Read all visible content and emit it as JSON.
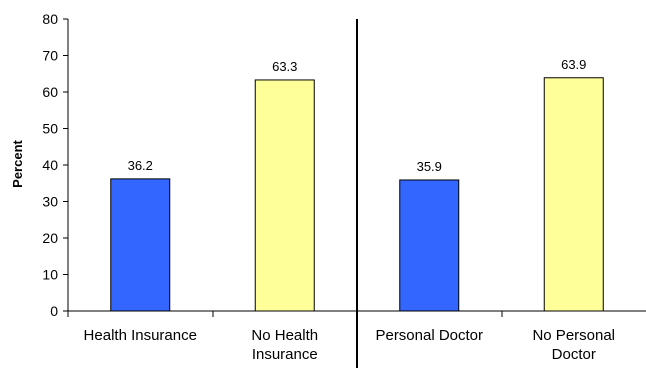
{
  "chart_data": {
    "type": "bar",
    "title": "",
    "xlabel": "",
    "ylabel": "Percent",
    "ylim": [
      0,
      80
    ],
    "yticks": [
      0,
      10,
      20,
      30,
      40,
      50,
      60,
      70,
      80
    ],
    "grid": false,
    "legend": "none",
    "categories": [
      [
        "Health Insurance"
      ],
      [
        "No Health",
        "Insurance"
      ],
      [
        "Personal Doctor"
      ],
      [
        "No Personal",
        "Doctor"
      ]
    ],
    "values": [
      36.2,
      63.3,
      35.9,
      63.9
    ],
    "data_labels": [
      "36.2",
      "63.3",
      "35.9",
      "63.9"
    ],
    "bar_colors": [
      "#3366ff",
      "#ffff99",
      "#3366ff",
      "#ffff99"
    ],
    "bar_stroke": "#000000",
    "groups": [
      {
        "categories": [
          0,
          1
        ]
      },
      {
        "categories": [
          2,
          3
        ]
      }
    ],
    "group_separator": "after-category-1"
  }
}
